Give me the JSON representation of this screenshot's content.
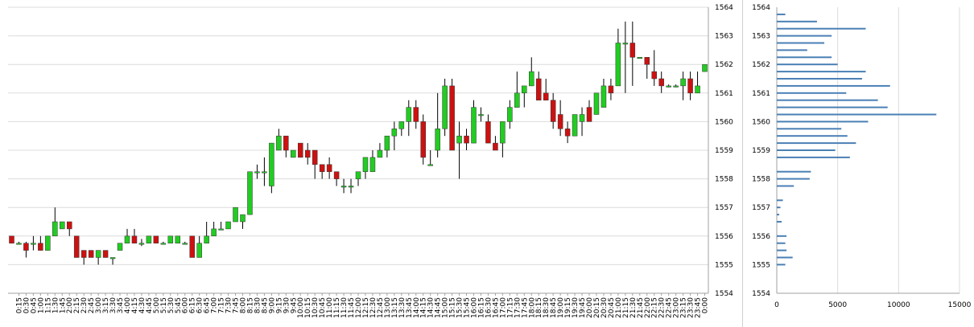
{
  "chart_data": [
    {
      "type": "candlestick",
      "title": "",
      "xlabel": "",
      "ylabel": "",
      "ylim": [
        1554,
        1564
      ],
      "y_ticks": [
        1554,
        1555,
        1556,
        1557,
        1558,
        1559,
        1560,
        1561,
        1562,
        1563,
        1564
      ],
      "grid": true,
      "colors": {
        "up": "#22cc22",
        "down": "#cc1111",
        "grid": "#dcdcdc",
        "wick": "#000000",
        "bar": "#4a7fb5"
      },
      "categories": [
        "0:00",
        "0:15",
        "0:30",
        "0:45",
        "1:00",
        "1:15",
        "1:30",
        "1:45",
        "2:00",
        "2:15",
        "2:30",
        "2:45",
        "3:00",
        "3:15",
        "3:30",
        "3:45",
        "4:00",
        "4:15",
        "4:30",
        "4:45",
        "5:00",
        "5:15",
        "5:30",
        "5:45",
        "6:00",
        "6:15",
        "6:30",
        "6:45",
        "7:00",
        "7:15",
        "7:30",
        "7:45",
        "8:00",
        "8:15",
        "8:30",
        "8:45",
        "9:00",
        "9:15",
        "9:30",
        "9:45",
        "10:00",
        "10:15",
        "10:30",
        "10:45",
        "11:00",
        "11:15",
        "11:30",
        "11:45",
        "12:00",
        "12:15",
        "12:30",
        "12:45",
        "13:00",
        "13:15",
        "13:30",
        "13:45",
        "14:00",
        "14:15",
        "14:30",
        "14:45",
        "15:00",
        "15:15",
        "15:30",
        "15:45",
        "16:00",
        "16:15",
        "16:30",
        "16:45",
        "17:00",
        "17:15",
        "17:30",
        "17:45",
        "18:00",
        "18:15",
        "18:30",
        "18:45",
        "19:00",
        "19:15",
        "19:30",
        "19:45",
        "20:00",
        "20:15",
        "20:30",
        "20:45",
        "21:00",
        "21:15",
        "21:30",
        "21:45",
        "22:00",
        "22:15",
        "22:30",
        "22:45",
        "23:00",
        "23:15",
        "23:30",
        "23:45",
        "0:00"
      ],
      "x_tick_labels": [
        "0:15",
        "0:30",
        "0:45",
        "1:00",
        "1:15",
        "1:30",
        "1:45",
        "2:00",
        "2:15",
        "2:30",
        "2:45",
        "3:00",
        "3:15",
        "3:30",
        "3:45",
        "4:00",
        "4:15",
        "4:30",
        "4:45",
        "5:00",
        "5:15",
        "5:30",
        "5:45",
        "6:00",
        "6:15",
        "6:30",
        "6:45",
        "7:00",
        "7:15",
        "7:30",
        "7:45",
        "8:00",
        "8:15",
        "8:30",
        "8:45",
        "9:00",
        "9:15",
        "9:30",
        "9:45",
        "10:00",
        "10:15",
        "10:30",
        "10:45",
        "11:00",
        "11:15",
        "11:30",
        "11:45",
        "12:00",
        "12:15",
        "12:30",
        "12:45",
        "13:00",
        "13:15",
        "13:30",
        "13:45",
        "14:00",
        "14:15",
        "14:30",
        "14:45",
        "15:00",
        "15:15",
        "15:30",
        "15:45",
        "16:00",
        "16:15",
        "16:30",
        "16:45",
        "17:00",
        "17:15",
        "17:30",
        "17:45",
        "18:00",
        "18:15",
        "18:30",
        "18:45",
        "19:00",
        "19:15",
        "19:30",
        "19:45",
        "20:00",
        "20:15",
        "20:30",
        "20:45",
        "21:00",
        "21:15",
        "21:30",
        "21:45",
        "22:00",
        "22:15",
        "22:30",
        "22:45",
        "23:00",
        "23:15",
        "23:30",
        "23:45",
        "0:00"
      ],
      "candles": [
        {
          "o": 1556.0,
          "h": 1556.0,
          "l": 1555.75,
          "c": 1555.75
        },
        {
          "o": 1555.75,
          "h": 1555.8,
          "l": 1555.7,
          "c": 1555.75
        },
        {
          "o": 1555.75,
          "h": 1555.8,
          "l": 1555.25,
          "c": 1555.5
        },
        {
          "o": 1555.75,
          "h": 1556.0,
          "l": 1555.5,
          "c": 1555.75
        },
        {
          "o": 1555.75,
          "h": 1556.0,
          "l": 1555.5,
          "c": 1555.5
        },
        {
          "o": 1555.5,
          "h": 1556.0,
          "l": 1555.5,
          "c": 1556.0
        },
        {
          "o": 1556.0,
          "h": 1557.0,
          "l": 1556.0,
          "c": 1556.5
        },
        {
          "o": 1556.25,
          "h": 1556.5,
          "l": 1556.25,
          "c": 1556.5
        },
        {
          "o": 1556.5,
          "h": 1556.5,
          "l": 1556.0,
          "c": 1556.25
        },
        {
          "o": 1556.0,
          "h": 1556.0,
          "l": 1555.25,
          "c": 1555.25
        },
        {
          "o": 1555.5,
          "h": 1555.5,
          "l": 1555.0,
          "c": 1555.25
        },
        {
          "o": 1555.5,
          "h": 1555.5,
          "l": 1555.25,
          "c": 1555.25
        },
        {
          "o": 1555.25,
          "h": 1555.5,
          "l": 1555.0,
          "c": 1555.5
        },
        {
          "o": 1555.5,
          "h": 1555.5,
          "l": 1555.25,
          "c": 1555.25
        },
        {
          "o": 1555.25,
          "h": 1555.25,
          "l": 1555.0,
          "c": 1555.25
        },
        {
          "o": 1555.5,
          "h": 1555.75,
          "l": 1555.5,
          "c": 1555.75
        },
        {
          "o": 1555.75,
          "h": 1556.25,
          "l": 1555.75,
          "c": 1556.0
        },
        {
          "o": 1556.0,
          "h": 1556.25,
          "l": 1555.75,
          "c": 1555.75
        },
        {
          "o": 1555.75,
          "h": 1555.9,
          "l": 1555.65,
          "c": 1555.75
        },
        {
          "o": 1555.75,
          "h": 1556.0,
          "l": 1555.75,
          "c": 1556.0
        },
        {
          "o": 1556.0,
          "h": 1556.0,
          "l": 1555.75,
          "c": 1555.75
        },
        {
          "o": 1555.75,
          "h": 1555.8,
          "l": 1555.7,
          "c": 1555.75
        },
        {
          "o": 1555.75,
          "h": 1556.0,
          "l": 1555.75,
          "c": 1556.0
        },
        {
          "o": 1555.75,
          "h": 1556.0,
          "l": 1555.75,
          "c": 1556.0
        },
        {
          "o": 1555.75,
          "h": 1555.8,
          "l": 1555.7,
          "c": 1555.75
        },
        {
          "o": 1556.0,
          "h": 1556.0,
          "l": 1555.25,
          "c": 1555.25
        },
        {
          "o": 1555.25,
          "h": 1556.0,
          "l": 1555.25,
          "c": 1555.75
        },
        {
          "o": 1555.75,
          "h": 1556.5,
          "l": 1555.75,
          "c": 1556.0
        },
        {
          "o": 1556.0,
          "h": 1556.5,
          "l": 1556.0,
          "c": 1556.25
        },
        {
          "o": 1556.25,
          "h": 1556.5,
          "l": 1556.25,
          "c": 1556.25
        },
        {
          "o": 1556.25,
          "h": 1556.5,
          "l": 1556.25,
          "c": 1556.5
        },
        {
          "o": 1556.5,
          "h": 1557.0,
          "l": 1556.5,
          "c": 1557.0
        },
        {
          "o": 1556.5,
          "h": 1556.75,
          "l": 1556.25,
          "c": 1556.75
        },
        {
          "o": 1556.75,
          "h": 1558.25,
          "l": 1556.75,
          "c": 1558.25
        },
        {
          "o": 1558.25,
          "h": 1558.5,
          "l": 1558.0,
          "c": 1558.25
        },
        {
          "o": 1558.25,
          "h": 1558.75,
          "l": 1557.75,
          "c": 1558.25
        },
        {
          "o": 1557.75,
          "h": 1559.25,
          "l": 1557.5,
          "c": 1559.25
        },
        {
          "o": 1559.0,
          "h": 1559.75,
          "l": 1559.0,
          "c": 1559.5
        },
        {
          "o": 1559.5,
          "h": 1559.5,
          "l": 1558.75,
          "c": 1559.0
        },
        {
          "o": 1558.75,
          "h": 1559.0,
          "l": 1558.75,
          "c": 1559.0
        },
        {
          "o": 1559.25,
          "h": 1559.25,
          "l": 1558.75,
          "c": 1558.75
        },
        {
          "o": 1559.0,
          "h": 1559.25,
          "l": 1558.5,
          "c": 1558.75
        },
        {
          "o": 1559.0,
          "h": 1559.0,
          "l": 1558.0,
          "c": 1558.5
        },
        {
          "o": 1558.5,
          "h": 1558.5,
          "l": 1558.0,
          "c": 1558.25
        },
        {
          "o": 1558.5,
          "h": 1558.75,
          "l": 1558.0,
          "c": 1558.25
        },
        {
          "o": 1558.25,
          "h": 1558.25,
          "l": 1557.75,
          "c": 1558.0
        },
        {
          "o": 1557.75,
          "h": 1558.0,
          "l": 1557.5,
          "c": 1557.75
        },
        {
          "o": 1557.75,
          "h": 1558.0,
          "l": 1557.5,
          "c": 1557.75
        },
        {
          "o": 1558.0,
          "h": 1558.25,
          "l": 1557.75,
          "c": 1558.25
        },
        {
          "o": 1558.25,
          "h": 1558.75,
          "l": 1558.0,
          "c": 1558.75
        },
        {
          "o": 1558.25,
          "h": 1559.0,
          "l": 1558.25,
          "c": 1558.75
        },
        {
          "o": 1558.75,
          "h": 1559.25,
          "l": 1558.75,
          "c": 1559.0
        },
        {
          "o": 1559.0,
          "h": 1559.5,
          "l": 1558.75,
          "c": 1559.5
        },
        {
          "o": 1559.5,
          "h": 1560.0,
          "l": 1559.0,
          "c": 1559.75
        },
        {
          "o": 1559.75,
          "h": 1560.0,
          "l": 1559.5,
          "c": 1560.0
        },
        {
          "o": 1560.0,
          "h": 1560.75,
          "l": 1559.5,
          "c": 1560.5
        },
        {
          "o": 1560.5,
          "h": 1560.75,
          "l": 1559.75,
          "c": 1560.0
        },
        {
          "o": 1560.0,
          "h": 1560.25,
          "l": 1558.5,
          "c": 1558.75
        },
        {
          "o": 1558.5,
          "h": 1559.0,
          "l": 1558.5,
          "c": 1558.5
        },
        {
          "o": 1559.0,
          "h": 1561.0,
          "l": 1558.75,
          "c": 1559.75
        },
        {
          "o": 1559.75,
          "h": 1561.5,
          "l": 1559.5,
          "c": 1561.25
        },
        {
          "o": 1561.25,
          "h": 1561.5,
          "l": 1559.0,
          "c": 1559.0
        },
        {
          "o": 1559.25,
          "h": 1560.0,
          "l": 1558.0,
          "c": 1559.5
        },
        {
          "o": 1559.5,
          "h": 1559.75,
          "l": 1559.0,
          "c": 1559.25
        },
        {
          "o": 1559.25,
          "h": 1560.75,
          "l": 1559.25,
          "c": 1560.5
        },
        {
          "o": 1560.25,
          "h": 1560.5,
          "l": 1560.0,
          "c": 1560.25
        },
        {
          "o": 1560.0,
          "h": 1560.25,
          "l": 1559.25,
          "c": 1559.25
        },
        {
          "o": 1559.25,
          "h": 1559.5,
          "l": 1559.0,
          "c": 1559.0
        },
        {
          "o": 1559.25,
          "h": 1560.0,
          "l": 1558.75,
          "c": 1560.0
        },
        {
          "o": 1560.0,
          "h": 1560.75,
          "l": 1559.75,
          "c": 1560.5
        },
        {
          "o": 1560.5,
          "h": 1561.75,
          "l": 1560.5,
          "c": 1561.0
        },
        {
          "o": 1561.0,
          "h": 1561.25,
          "l": 1560.5,
          "c": 1561.25
        },
        {
          "o": 1561.25,
          "h": 1562.25,
          "l": 1561.25,
          "c": 1561.75
        },
        {
          "o": 1561.5,
          "h": 1561.75,
          "l": 1560.75,
          "c": 1560.75
        },
        {
          "o": 1561.0,
          "h": 1561.5,
          "l": 1560.75,
          "c": 1560.75
        },
        {
          "o": 1560.75,
          "h": 1561.0,
          "l": 1559.75,
          "c": 1560.0
        },
        {
          "o": 1560.25,
          "h": 1560.75,
          "l": 1559.5,
          "c": 1559.75
        },
        {
          "o": 1559.75,
          "h": 1560.0,
          "l": 1559.25,
          "c": 1559.5
        },
        {
          "o": 1559.5,
          "h": 1560.25,
          "l": 1559.5,
          "c": 1560.25
        },
        {
          "o": 1560.0,
          "h": 1560.5,
          "l": 1559.5,
          "c": 1560.25
        },
        {
          "o": 1560.5,
          "h": 1560.75,
          "l": 1560.0,
          "c": 1560.0
        },
        {
          "o": 1560.25,
          "h": 1561.0,
          "l": 1560.25,
          "c": 1561.0
        },
        {
          "o": 1560.5,
          "h": 1561.5,
          "l": 1560.5,
          "c": 1561.25
        },
        {
          "o": 1561.25,
          "h": 1561.5,
          "l": 1560.75,
          "c": 1561.0
        },
        {
          "o": 1561.25,
          "h": 1563.25,
          "l": 1561.25,
          "c": 1562.75
        },
        {
          "o": 1562.75,
          "h": 1563.5,
          "l": 1561.0,
          "c": 1562.75
        },
        {
          "o": 1562.75,
          "h": 1563.5,
          "l": 1561.25,
          "c": 1562.25
        },
        {
          "o": 1562.25,
          "h": 1562.25,
          "l": 1562.25,
          "c": 1562.25
        },
        {
          "o": 1562.25,
          "h": 1562.25,
          "l": 1561.5,
          "c": 1562.0
        },
        {
          "o": 1561.75,
          "h": 1562.5,
          "l": 1561.25,
          "c": 1561.5
        },
        {
          "o": 1561.5,
          "h": 1561.75,
          "l": 1561.0,
          "c": 1561.25
        },
        {
          "o": 1561.25,
          "h": 1561.3,
          "l": 1561.2,
          "c": 1561.25
        },
        {
          "o": 1561.25,
          "h": 1561.3,
          "l": 1561.2,
          "c": 1561.25
        },
        {
          "o": 1561.25,
          "h": 1561.75,
          "l": 1560.75,
          "c": 1561.5
        },
        {
          "o": 1561.5,
          "h": 1561.75,
          "l": 1560.75,
          "c": 1561.0
        },
        {
          "o": 1561.0,
          "h": 1561.75,
          "l": 1561.0,
          "c": 1561.25
        },
        {
          "o": 1561.75,
          "h": 1562.0,
          "l": 1561.75,
          "c": 1562.0
        }
      ]
    },
    {
      "type": "bar",
      "orientation": "horizontal",
      "title": "",
      "xlabel": "",
      "ylabel": "",
      "xlim": [
        0,
        15000
      ],
      "x_ticks": [
        0,
        5000,
        10000,
        15000
      ],
      "ylim": [
        1554,
        1564
      ],
      "y_ticks": [
        1554,
        1555,
        1556,
        1557,
        1558,
        1559,
        1560,
        1561,
        1562,
        1563,
        1564
      ],
      "grid": true,
      "price_levels": [
        1563.75,
        1563.5,
        1563.25,
        1563.0,
        1562.75,
        1562.5,
        1562.25,
        1562.0,
        1561.75,
        1561.5,
        1561.25,
        1561.0,
        1560.75,
        1560.5,
        1560.25,
        1560.0,
        1559.75,
        1559.5,
        1559.25,
        1559.0,
        1558.75,
        1558.5,
        1558.25,
        1558.0,
        1557.75,
        1557.5,
        1557.25,
        1557.0,
        1556.75,
        1556.5,
        1556.25,
        1556.0,
        1555.75,
        1555.5,
        1555.25,
        1555.0
      ],
      "values": [
        700,
        3300,
        7300,
        4500,
        3900,
        2500,
        4500,
        5000,
        7300,
        7000,
        9300,
        5700,
        8300,
        9100,
        13100,
        7500,
        5300,
        5800,
        6500,
        4800,
        6000,
        0,
        2800,
        2700,
        1400,
        0,
        500,
        300,
        200,
        400,
        0,
        800,
        700,
        800,
        1300,
        700
      ]
    }
  ]
}
